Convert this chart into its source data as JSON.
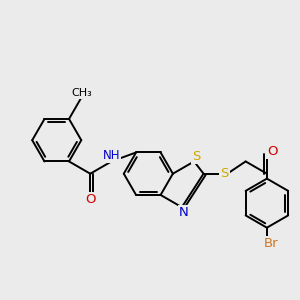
{
  "background_color": "#ebebeb",
  "atom_colors": {
    "C": "#000000",
    "N": "#0000cc",
    "O": "#cc0000",
    "S": "#ccaa00",
    "Br": "#cc7722",
    "NH": "#0000cc"
  },
  "bond_color": "#000000",
  "bond_width": 1.4,
  "font_size": 8.5,
  "fig_width": 3.0,
  "fig_height": 3.0,
  "dpi": 100,
  "xlim": [
    -1,
    11
  ],
  "ylim": [
    -4,
    4
  ]
}
